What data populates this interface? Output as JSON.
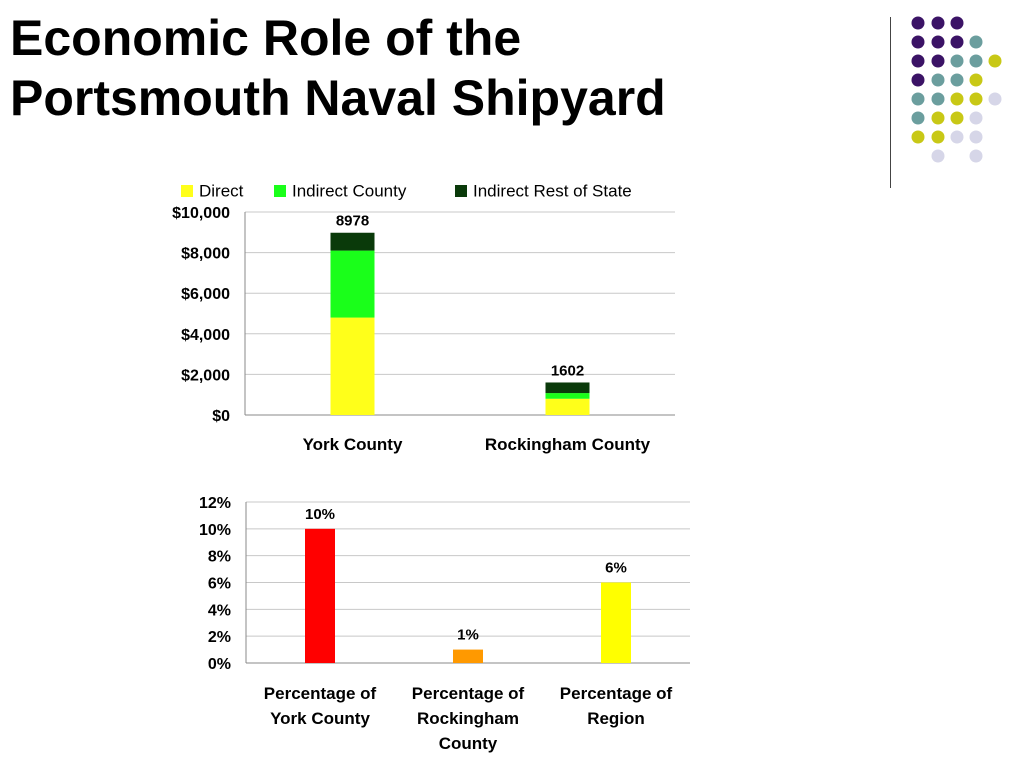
{
  "slide": {
    "title_line1": "Economic Role of the",
    "title_line2": "Portsmouth Naval Shipyard"
  },
  "decor_colors": {
    "purple": "#3b1366",
    "teal": "#6b9e9e",
    "olive": "#c8c816",
    "lavender": "#d6d6e8",
    "rule": "#444444"
  },
  "chart_data": [
    {
      "type": "bar",
      "stacked": true,
      "categories": [
        "York County",
        "Rockingham County"
      ],
      "series": [
        {
          "name": "Direct",
          "color": "#ffff1a",
          "values": [
            4800,
            800
          ]
        },
        {
          "name": "Indirect County",
          "color": "#1aff1a",
          "values": [
            3300,
            280
          ]
        },
        {
          "name": "Indirect Rest of State",
          "color": "#0a3a0a",
          "values": [
            878,
            522
          ]
        }
      ],
      "totals": [
        8978,
        1602
      ],
      "total_labels": [
        "8978",
        "1602"
      ],
      "ylim": [
        0,
        10000
      ],
      "yticks": [
        "$0",
        "$2,000",
        "$4,000",
        "$6,000",
        "$8,000",
        "$10,000"
      ],
      "grid": true,
      "legend": "top",
      "title": "",
      "xlabel": "",
      "ylabel": ""
    },
    {
      "type": "bar",
      "categories": [
        [
          "Percentage of",
          "York County"
        ],
        [
          "Percentage of",
          "Rockingham",
          "County"
        ],
        [
          "Percentage of",
          "Region"
        ]
      ],
      "values": [
        10,
        1,
        6
      ],
      "value_labels": [
        "10%",
        "1%",
        "6%"
      ],
      "colors": [
        "#ff0000",
        "#ff9900",
        "#ffff00"
      ],
      "ylim": [
        0,
        12
      ],
      "yticks": [
        "0%",
        "2%",
        "4%",
        "6%",
        "8%",
        "10%",
        "12%"
      ],
      "grid": true,
      "title": "",
      "xlabel": "",
      "ylabel": ""
    }
  ]
}
